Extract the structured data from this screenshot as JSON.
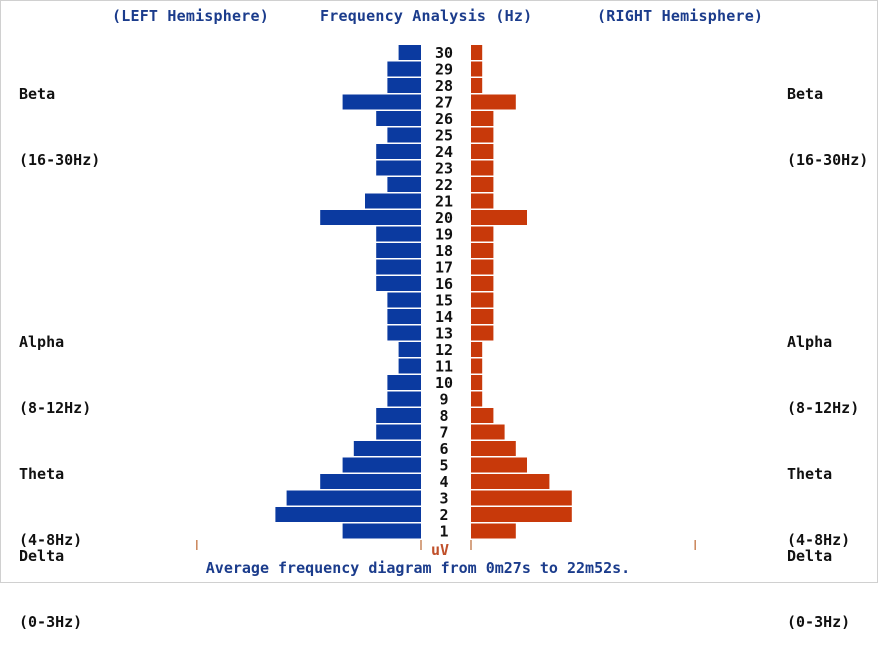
{
  "header": {
    "left_label": "(LEFT Hemisphere)",
    "center_label": "Frequency Analysis (Hz)",
    "right_label": "(RIGHT Hemisphere)"
  },
  "bands_left": [
    {
      "name": "Beta",
      "range": "(16-30Hz)"
    },
    {
      "name": "Alpha",
      "range": "(8-12Hz)"
    },
    {
      "name": "Theta",
      "range": "(4-8Hz)"
    },
    {
      "name": "Delta",
      "range": "(0-3Hz)"
    }
  ],
  "bands_right": [
    {
      "name": "Beta",
      "range": "(16-30Hz)"
    },
    {
      "name": "Alpha",
      "range": "(8-12Hz)"
    },
    {
      "name": "Theta",
      "range": "(4-8Hz)"
    },
    {
      "name": "Delta",
      "range": "(0-3Hz)"
    }
  ],
  "footer": "Average frequency diagram from 0m27s to 22m52s.",
  "colors": {
    "left": "#0b3aa0",
    "right": "#c8390a",
    "tick": "#c9855a",
    "unit": "#c0502a"
  },
  "chart_data": {
    "type": "bar",
    "orientation": "horizontal-butterfly",
    "unit_label": "uV",
    "frequencies": [
      1,
      2,
      3,
      4,
      5,
      6,
      7,
      8,
      9,
      10,
      11,
      12,
      13,
      14,
      15,
      16,
      17,
      18,
      19,
      20,
      21,
      22,
      23,
      24,
      25,
      26,
      27,
      28,
      29,
      30
    ],
    "series": [
      {
        "name": "LEFT Hemisphere",
        "values": [
          7,
          13,
          12,
          9,
          7,
          6,
          4,
          4,
          3,
          3,
          2,
          2,
          3,
          3,
          3,
          4,
          4,
          4,
          4,
          9,
          5,
          3,
          4,
          4,
          3,
          4,
          7,
          3,
          3,
          2
        ]
      },
      {
        "name": "RIGHT Hemisphere",
        "values": [
          4,
          9,
          9,
          7,
          5,
          4,
          3,
          2,
          1,
          1,
          1,
          1,
          2,
          2,
          2,
          2,
          2,
          2,
          2,
          5,
          2,
          2,
          2,
          2,
          2,
          2,
          4,
          1,
          1,
          1
        ]
      }
    ],
    "max_value": 13
  }
}
